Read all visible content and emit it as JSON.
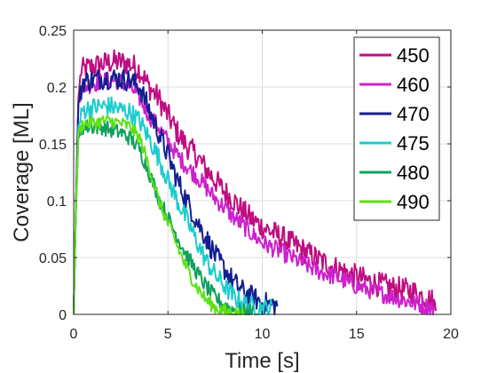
{
  "chart_data": {
    "type": "line",
    "title": "",
    "xlabel": "Time [s]",
    "ylabel": "Coverage [ML]",
    "xlim": [
      0,
      20
    ],
    "ylim": [
      0,
      0.25
    ],
    "grid": true,
    "legend_position": "top-right",
    "xticks": [
      0,
      5,
      10,
      15,
      20
    ],
    "yticks": [
      0,
      0.05,
      0.1,
      0.15,
      0.2,
      0.25
    ],
    "xtick_labels": [
      "0",
      "5",
      "10",
      "15",
      "20"
    ],
    "ytick_labels": [
      "0",
      "0.05",
      "0.1",
      "0.15",
      "0.2",
      "0.25"
    ],
    "series": [
      {
        "name": "450",
        "color": "#bf0d82",
        "x": [
          0,
          0.1,
          0.25,
          0.4,
          0.5,
          1,
          1.5,
          2,
          2.5,
          3,
          3.5,
          4,
          4.5,
          5,
          5.5,
          6,
          6.5,
          7,
          7.5,
          8,
          8.5,
          9,
          9.5,
          10,
          11,
          12,
          13,
          14,
          15,
          16,
          17,
          18,
          19,
          19.2
        ],
        "y": [
          0,
          0.08,
          0.19,
          0.215,
          0.215,
          0.218,
          0.22,
          0.222,
          0.222,
          0.22,
          0.215,
          0.2,
          0.19,
          0.175,
          0.16,
          0.148,
          0.14,
          0.128,
          0.118,
          0.108,
          0.1,
          0.09,
          0.083,
          0.077,
          0.068,
          0.058,
          0.048,
          0.04,
          0.033,
          0.027,
          0.023,
          0.02,
          0.012,
          0.005
        ],
        "noise": 0.011
      },
      {
        "name": "460",
        "color": "#cc21cc",
        "x": [
          0,
          0.1,
          0.25,
          0.4,
          0.5,
          1,
          1.5,
          2,
          2.5,
          3,
          3.5,
          4,
          4.5,
          5,
          5.5,
          6,
          6.5,
          7,
          7.5,
          8,
          8.5,
          9,
          9.5,
          10,
          11,
          12,
          13,
          14,
          15,
          16,
          17,
          18,
          19,
          19.1
        ],
        "y": [
          0,
          0.08,
          0.185,
          0.2,
          0.2,
          0.203,
          0.205,
          0.206,
          0.205,
          0.2,
          0.19,
          0.175,
          0.165,
          0.152,
          0.14,
          0.13,
          0.122,
          0.112,
          0.102,
          0.094,
          0.085,
          0.078,
          0.07,
          0.063,
          0.055,
          0.046,
          0.038,
          0.032,
          0.025,
          0.02,
          0.015,
          0.01,
          0.006,
          0.004
        ],
        "noise": 0.008
      },
      {
        "name": "470",
        "color": "#141f8f",
        "x": [
          0,
          0.1,
          0.25,
          0.5,
          1,
          1.5,
          2,
          2.5,
          3,
          3.5,
          4,
          4.5,
          5,
          5.5,
          6,
          6.5,
          7,
          7.5,
          8,
          8.5,
          9,
          9.5,
          10,
          10.8
        ],
        "y": [
          0,
          0.08,
          0.185,
          0.205,
          0.206,
          0.208,
          0.208,
          0.207,
          0.206,
          0.2,
          0.18,
          0.16,
          0.14,
          0.118,
          0.1,
          0.083,
          0.068,
          0.052,
          0.04,
          0.028,
          0.02,
          0.015,
          0.01,
          0.008
        ],
        "noise": 0.01
      },
      {
        "name": "475",
        "color": "#1ccccc",
        "x": [
          0,
          0.1,
          0.25,
          0.5,
          1,
          1.5,
          2,
          2.5,
          3,
          3.5,
          4,
          4.5,
          5,
          5.5,
          6,
          6.5,
          7,
          7.5,
          8,
          8.5,
          9,
          9.5,
          10,
          10.5
        ],
        "y": [
          0,
          0.08,
          0.165,
          0.18,
          0.182,
          0.183,
          0.183,
          0.18,
          0.178,
          0.17,
          0.155,
          0.138,
          0.118,
          0.1,
          0.083,
          0.065,
          0.048,
          0.035,
          0.025,
          0.015,
          0.01,
          0.007,
          0.005,
          0.005
        ],
        "noise": 0.009
      },
      {
        "name": "480",
        "color": "#12a060",
        "x": [
          0,
          0.1,
          0.25,
          0.5,
          1,
          1.5,
          2,
          2.5,
          3,
          3.5,
          4,
          4.5,
          5,
          5.5,
          6,
          6.5,
          7,
          7.5,
          8,
          8.5,
          9,
          9.5
        ],
        "y": [
          0,
          0.08,
          0.155,
          0.165,
          0.165,
          0.165,
          0.162,
          0.16,
          0.155,
          0.145,
          0.125,
          0.103,
          0.085,
          0.068,
          0.052,
          0.038,
          0.025,
          0.015,
          0.008,
          0.004,
          0.002,
          0.002
        ],
        "noise": 0.007
      },
      {
        "name": "490",
        "color": "#5ee016",
        "x": [
          0,
          0.1,
          0.25,
          0.5,
          1,
          1.5,
          2,
          2.5,
          3,
          3.5,
          4,
          4.5,
          5,
          5.5,
          6,
          6.5,
          7,
          7.5,
          8,
          8.5,
          9
        ],
        "y": [
          0,
          0.08,
          0.16,
          0.168,
          0.168,
          0.17,
          0.17,
          0.168,
          0.165,
          0.155,
          0.13,
          0.1,
          0.08,
          0.06,
          0.04,
          0.025,
          0.013,
          0.006,
          0.003,
          0.001,
          0.0
        ],
        "noise": 0.006
      }
    ]
  }
}
